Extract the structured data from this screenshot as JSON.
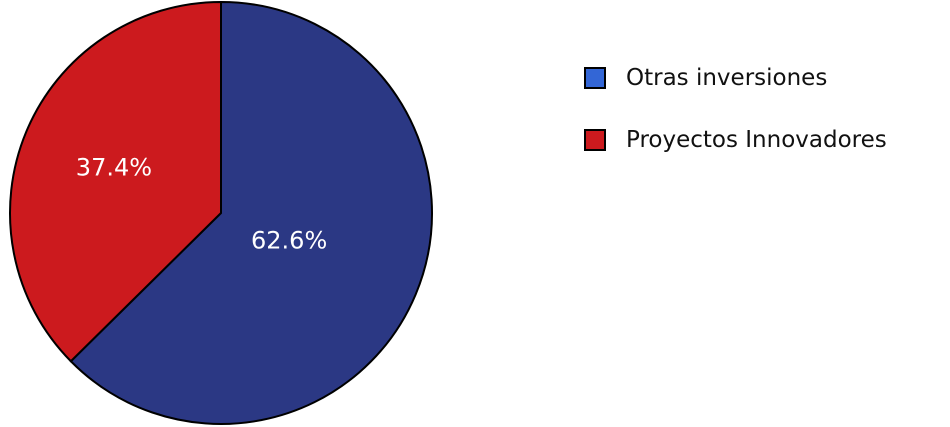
{
  "chart_data": {
    "type": "pie",
    "categories": [
      "Otras inversiones",
      "Proyectos Innovadores"
    ],
    "values": [
      62.6,
      37.4
    ],
    "data_labels": [
      "62.6%",
      "37.4%"
    ],
    "slice_colors": [
      "#2b3884",
      "#cc1a1e"
    ],
    "legend_colors": [
      "#3366d6",
      "#cc1a1e"
    ],
    "legend_position": "right",
    "start": "top, clockwise"
  }
}
